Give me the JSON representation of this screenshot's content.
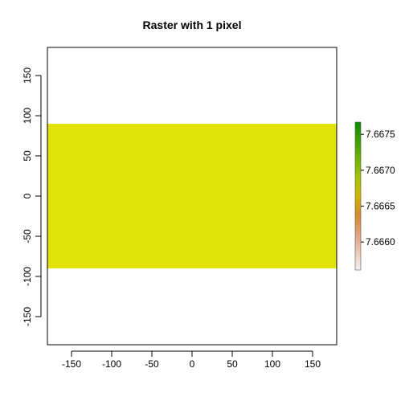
{
  "chart_data": {
    "type": "heatmap",
    "title": "Raster with 1 pixel",
    "xlabel": "",
    "ylabel": "",
    "xlim": [
      -180,
      180
    ],
    "ylim": [
      -185,
      185
    ],
    "x_ticks": [
      -150,
      -100,
      -50,
      0,
      50,
      100,
      150
    ],
    "x_tick_labels": [
      "-150",
      "-100",
      "-50",
      "0",
      "50",
      "100",
      "150"
    ],
    "y_ticks": [
      -150,
      -100,
      -50,
      0,
      50,
      100,
      150
    ],
    "y_tick_labels": [
      "-150",
      "-100",
      "-50",
      "0",
      "50",
      "100",
      "150"
    ],
    "cells": [
      {
        "xmin": -180,
        "xmax": 180,
        "ymin": -90,
        "ymax": 90,
        "value": 7.66653,
        "color": "#e0e20a"
      }
    ],
    "legend": {
      "range": [
        7.66561,
        7.66767
      ],
      "ticks": [
        7.666,
        7.6665,
        7.667,
        7.6675
      ],
      "tick_labels": [
        "7.6660",
        "7.6665",
        "7.6670",
        "7.6675"
      ],
      "colors": [
        "#f2f2f2",
        "#e8c7b5",
        "#e0a079",
        "#d68a2c",
        "#cfb500",
        "#a8c400",
        "#6cb400",
        "#3aa100",
        "#0b8a00"
      ],
      "placement": "right"
    },
    "grid": false
  }
}
